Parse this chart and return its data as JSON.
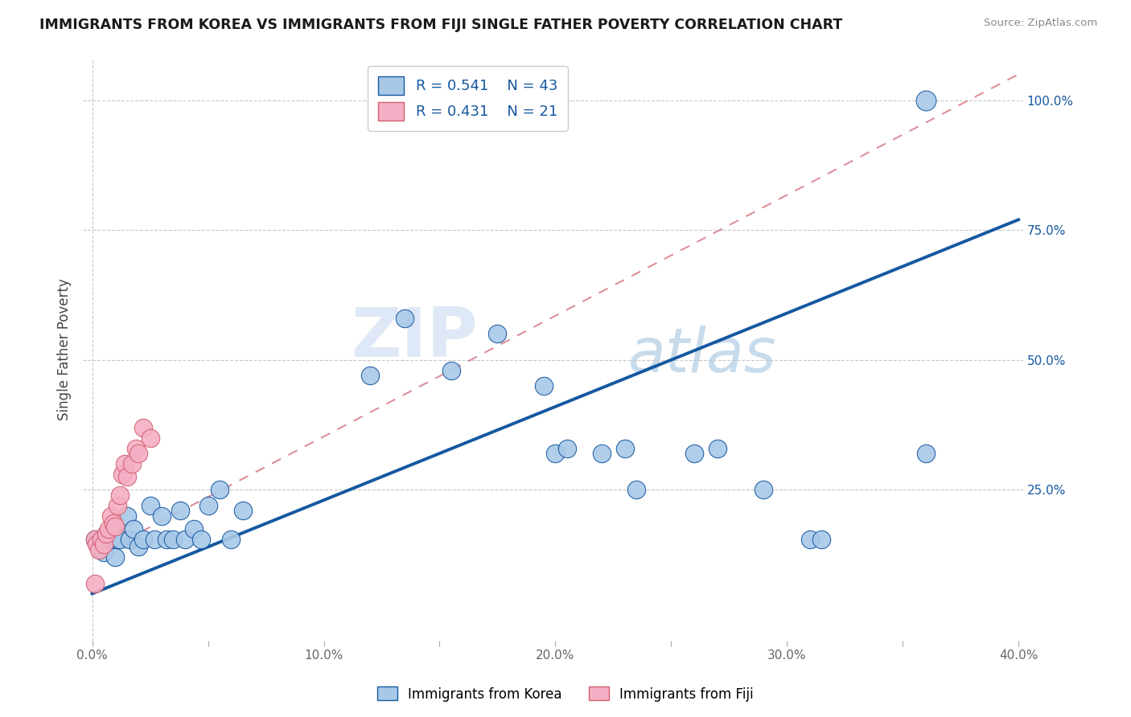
{
  "title": "IMMIGRANTS FROM KOREA VS IMMIGRANTS FROM FIJI SINGLE FATHER POVERTY CORRELATION CHART",
  "source": "Source: ZipAtlas.com",
  "ylabel": "Single Father Poverty",
  "R1": 0.541,
  "N1": 43,
  "R2": 0.431,
  "N2": 21,
  "xlim": [
    -0.004,
    0.402
  ],
  "ylim": [
    -0.04,
    1.08
  ],
  "xtick_labels": [
    "0.0%",
    "",
    "10.0%",
    "",
    "20.0%",
    "",
    "30.0%",
    "",
    "40.0%"
  ],
  "xtick_values": [
    0.0,
    0.05,
    0.1,
    0.15,
    0.2,
    0.25,
    0.3,
    0.35,
    0.4
  ],
  "ytick_right_labels": [
    "100.0%",
    "75.0%",
    "50.0%",
    "25.0%"
  ],
  "ytick_right_values": [
    1.0,
    0.75,
    0.5,
    0.25
  ],
  "color_korea": "#a8c8e8",
  "color_fiji": "#f4afc4",
  "color_korea_line": "#1458a0",
  "color_fiji_line": "#d06070",
  "legend_label1": "Immigrants from Korea",
  "legend_label2": "Immigrants from Fiji",
  "watermark_zip": "ZIP",
  "watermark_atlas": "atlas",
  "korea_x": [
    0.001,
    0.003,
    0.005,
    0.007,
    0.008,
    0.009,
    0.01,
    0.011,
    0.012,
    0.015,
    0.016,
    0.018,
    0.02,
    0.022,
    0.025,
    0.027,
    0.03,
    0.032,
    0.035,
    0.038,
    0.04,
    0.044,
    0.047,
    0.05,
    0.055,
    0.06,
    0.065,
    0.12,
    0.135,
    0.155,
    0.175,
    0.195,
    0.2,
    0.205,
    0.22,
    0.23,
    0.235,
    0.26,
    0.27,
    0.29,
    0.31,
    0.315,
    0.36
  ],
  "korea_y": [
    0.155,
    0.14,
    0.13,
    0.155,
    0.155,
    0.17,
    0.12,
    0.155,
    0.155,
    0.2,
    0.155,
    0.175,
    0.14,
    0.155,
    0.22,
    0.155,
    0.2,
    0.155,
    0.155,
    0.21,
    0.155,
    0.175,
    0.155,
    0.22,
    0.25,
    0.155,
    0.21,
    0.47,
    0.58,
    0.48,
    0.55,
    0.45,
    0.32,
    0.33,
    0.32,
    0.33,
    0.25,
    0.32,
    0.33,
    0.25,
    0.155,
    0.155,
    0.32
  ],
  "fiji_x": [
    0.001,
    0.002,
    0.003,
    0.004,
    0.005,
    0.006,
    0.007,
    0.008,
    0.009,
    0.01,
    0.011,
    0.012,
    0.013,
    0.014,
    0.015,
    0.017,
    0.019,
    0.02,
    0.022,
    0.025,
    0.001
  ],
  "fiji_y": [
    0.155,
    0.145,
    0.135,
    0.155,
    0.145,
    0.165,
    0.175,
    0.2,
    0.185,
    0.18,
    0.22,
    0.24,
    0.28,
    0.3,
    0.275,
    0.3,
    0.33,
    0.32,
    0.37,
    0.35,
    0.07
  ]
}
